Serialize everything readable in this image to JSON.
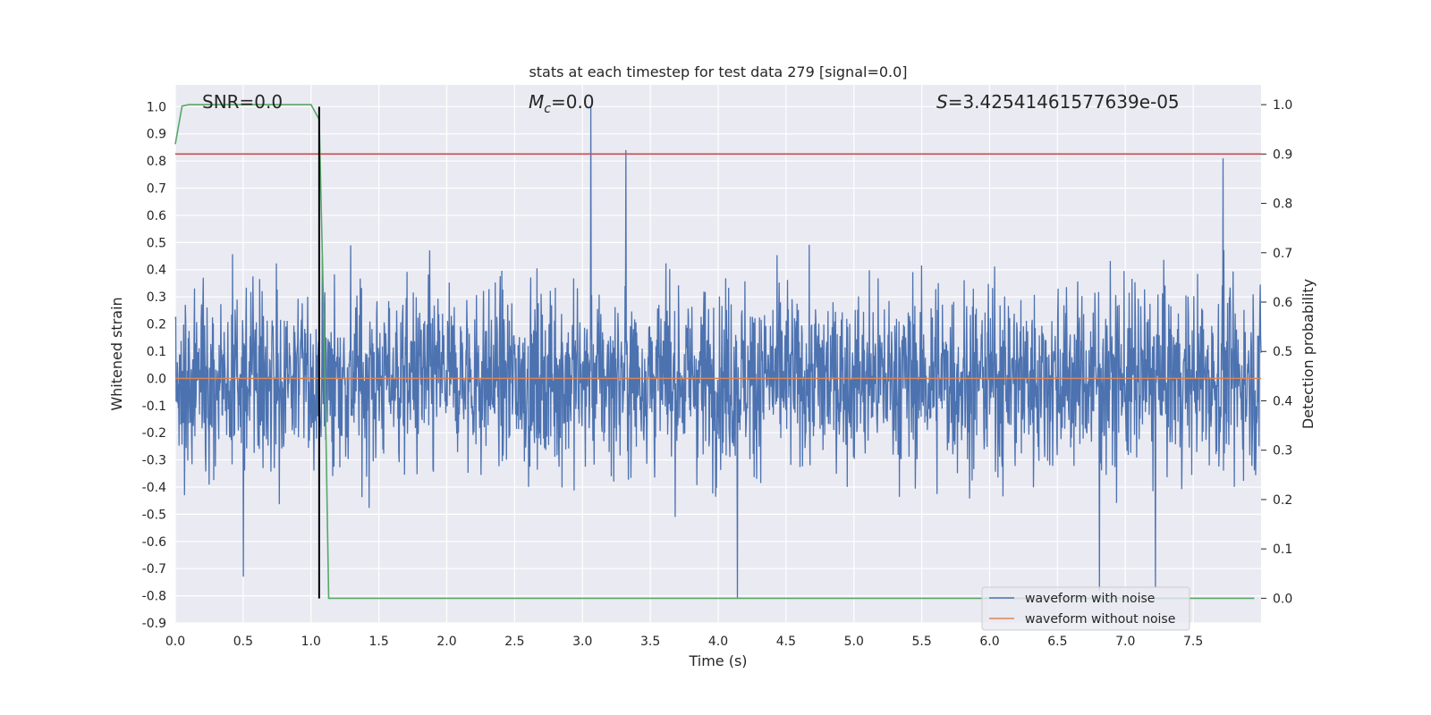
{
  "chart_data": {
    "type": "line",
    "title": "stats at each timestep for test data 279 [signal=0.0]",
    "xlabel": "Time (s)",
    "ylabel": "Whitened strain",
    "y2label": "Detection probability",
    "xlim": [
      0.0,
      8.0
    ],
    "ylim": [
      -0.9,
      1.08
    ],
    "y2lim": [
      -0.05,
      1.04
    ],
    "x_ticks": [
      "0.0",
      "0.5",
      "1.0",
      "1.5",
      "2.0",
      "2.5",
      "3.0",
      "3.5",
      "4.0",
      "4.5",
      "5.0",
      "5.5",
      "6.0",
      "6.5",
      "7.0",
      "7.5"
    ],
    "y_ticks": [
      "1.0",
      "0.9",
      "0.8",
      "0.7",
      "0.6",
      "0.5",
      "0.4",
      "0.3",
      "0.2",
      "0.1",
      "0.0",
      "-0.1",
      "-0.2",
      "-0.3",
      "-0.4",
      "-0.5",
      "-0.6",
      "-0.7",
      "-0.8",
      "-0.9"
    ],
    "y2_ticks": [
      "1.0",
      "0.9",
      "0.8",
      "0.7",
      "0.6",
      "0.5",
      "0.4",
      "0.3",
      "0.2",
      "0.1",
      "0.0"
    ],
    "grid": true,
    "legend_position": "bottom-right",
    "annotations": {
      "snr": "SNR=0.0",
      "mc_symbol": "M",
      "mc_sub": "c",
      "mc_value": "=0.0",
      "s_symbol": "S",
      "s_value": "=3.42541461577639e-05"
    },
    "series": [
      {
        "name": "waveform with noise",
        "color": "#4c72b0",
        "noise_envelope": {
          "typical_amplitude": 0.42,
          "max": 1.0,
          "min": -0.81
        },
        "peaks": [
          [
            3.06,
            1.0
          ],
          [
            3.32,
            0.84
          ],
          [
            7.72,
            0.81
          ],
          [
            4.14,
            -0.81
          ],
          [
            6.81,
            -0.78
          ],
          [
            7.22,
            -0.77
          ],
          [
            0.5,
            -0.73
          ]
        ]
      },
      {
        "name": "waveform without noise",
        "color": "#dd8452",
        "x": [
          0.0,
          8.0
        ],
        "y": [
          0.0,
          0.0
        ]
      },
      {
        "axis": "right",
        "color": "#55a868",
        "x": [
          0.0,
          0.05,
          0.1,
          0.5,
          1.0,
          1.06,
          1.1,
          1.13,
          1.5,
          7.95
        ],
        "y": [
          0.92,
          0.997,
          1.0,
          1.0,
          1.0,
          0.97,
          0.5,
          0.0,
          0.0,
          0.0
        ]
      }
    ],
    "threshold_line": {
      "axis": "right",
      "value": 0.9,
      "color": "#c44e52"
    },
    "marker_line": {
      "x": 1.06,
      "y_from": -0.81,
      "y_to": 1.0,
      "color": "#000000"
    }
  }
}
